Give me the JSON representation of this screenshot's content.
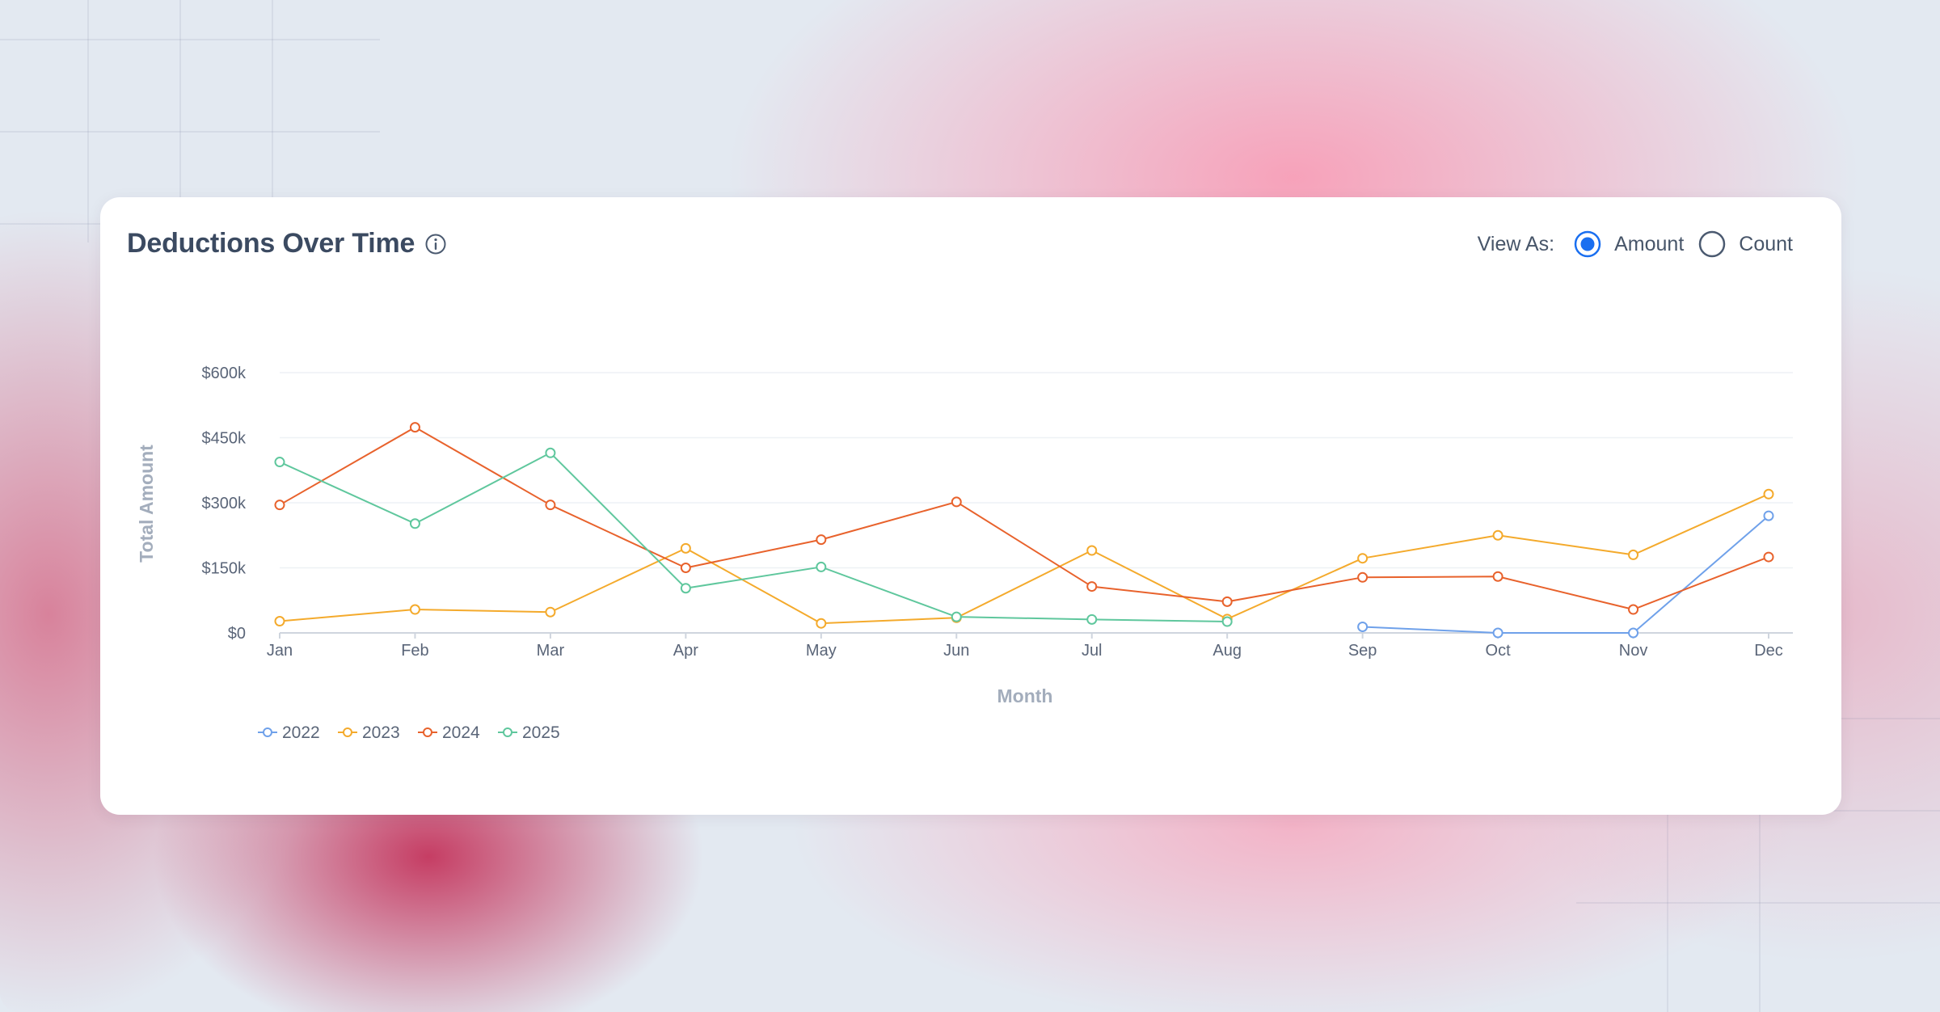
{
  "header": {
    "title": "Deductions Over Time",
    "info_icon": "info-circle-icon"
  },
  "view_as": {
    "label": "View As:",
    "options": [
      {
        "label": "Amount",
        "selected": true
      },
      {
        "label": "Count",
        "selected": false
      }
    ]
  },
  "colors": {
    "accent": "#1a6ff0",
    "text": "#3b4a61",
    "grid": "#eef1f5"
  },
  "chart_data": {
    "type": "line",
    "title": "Deductions Over Time",
    "xlabel": "Month",
    "ylabel": "Total Amount",
    "categories": [
      "Jan",
      "Feb",
      "Mar",
      "Apr",
      "May",
      "Jun",
      "Jul",
      "Aug",
      "Sep",
      "Oct",
      "Nov",
      "Dec"
    ],
    "ylim": [
      0,
      600000
    ],
    "yticks": [
      0,
      150000,
      300000,
      450000,
      600000
    ],
    "ytick_labels": [
      "$0",
      "$150k",
      "$300k",
      "$450k",
      "$600k"
    ],
    "grid": true,
    "legend_position": "bottom-left",
    "series": [
      {
        "name": "2022",
        "color": "#6fa1ea",
        "values": [
          null,
          null,
          null,
          null,
          null,
          null,
          null,
          null,
          14000,
          0,
          0,
          270000
        ]
      },
      {
        "name": "2023",
        "color": "#f4aa2c",
        "values": [
          27000,
          54000,
          48000,
          195000,
          22000,
          35000,
          190000,
          32000,
          172000,
          225000,
          180000,
          320000
        ]
      },
      {
        "name": "2024",
        "color": "#e8622c",
        "values": [
          295000,
          474000,
          295000,
          150000,
          215000,
          302000,
          107000,
          72000,
          128000,
          130000,
          54000,
          175000
        ]
      },
      {
        "name": "2025",
        "color": "#5fc79d",
        "values": [
          394000,
          252000,
          415000,
          103000,
          152000,
          37000,
          31000,
          26000,
          null,
          null,
          null,
          null
        ]
      }
    ]
  }
}
